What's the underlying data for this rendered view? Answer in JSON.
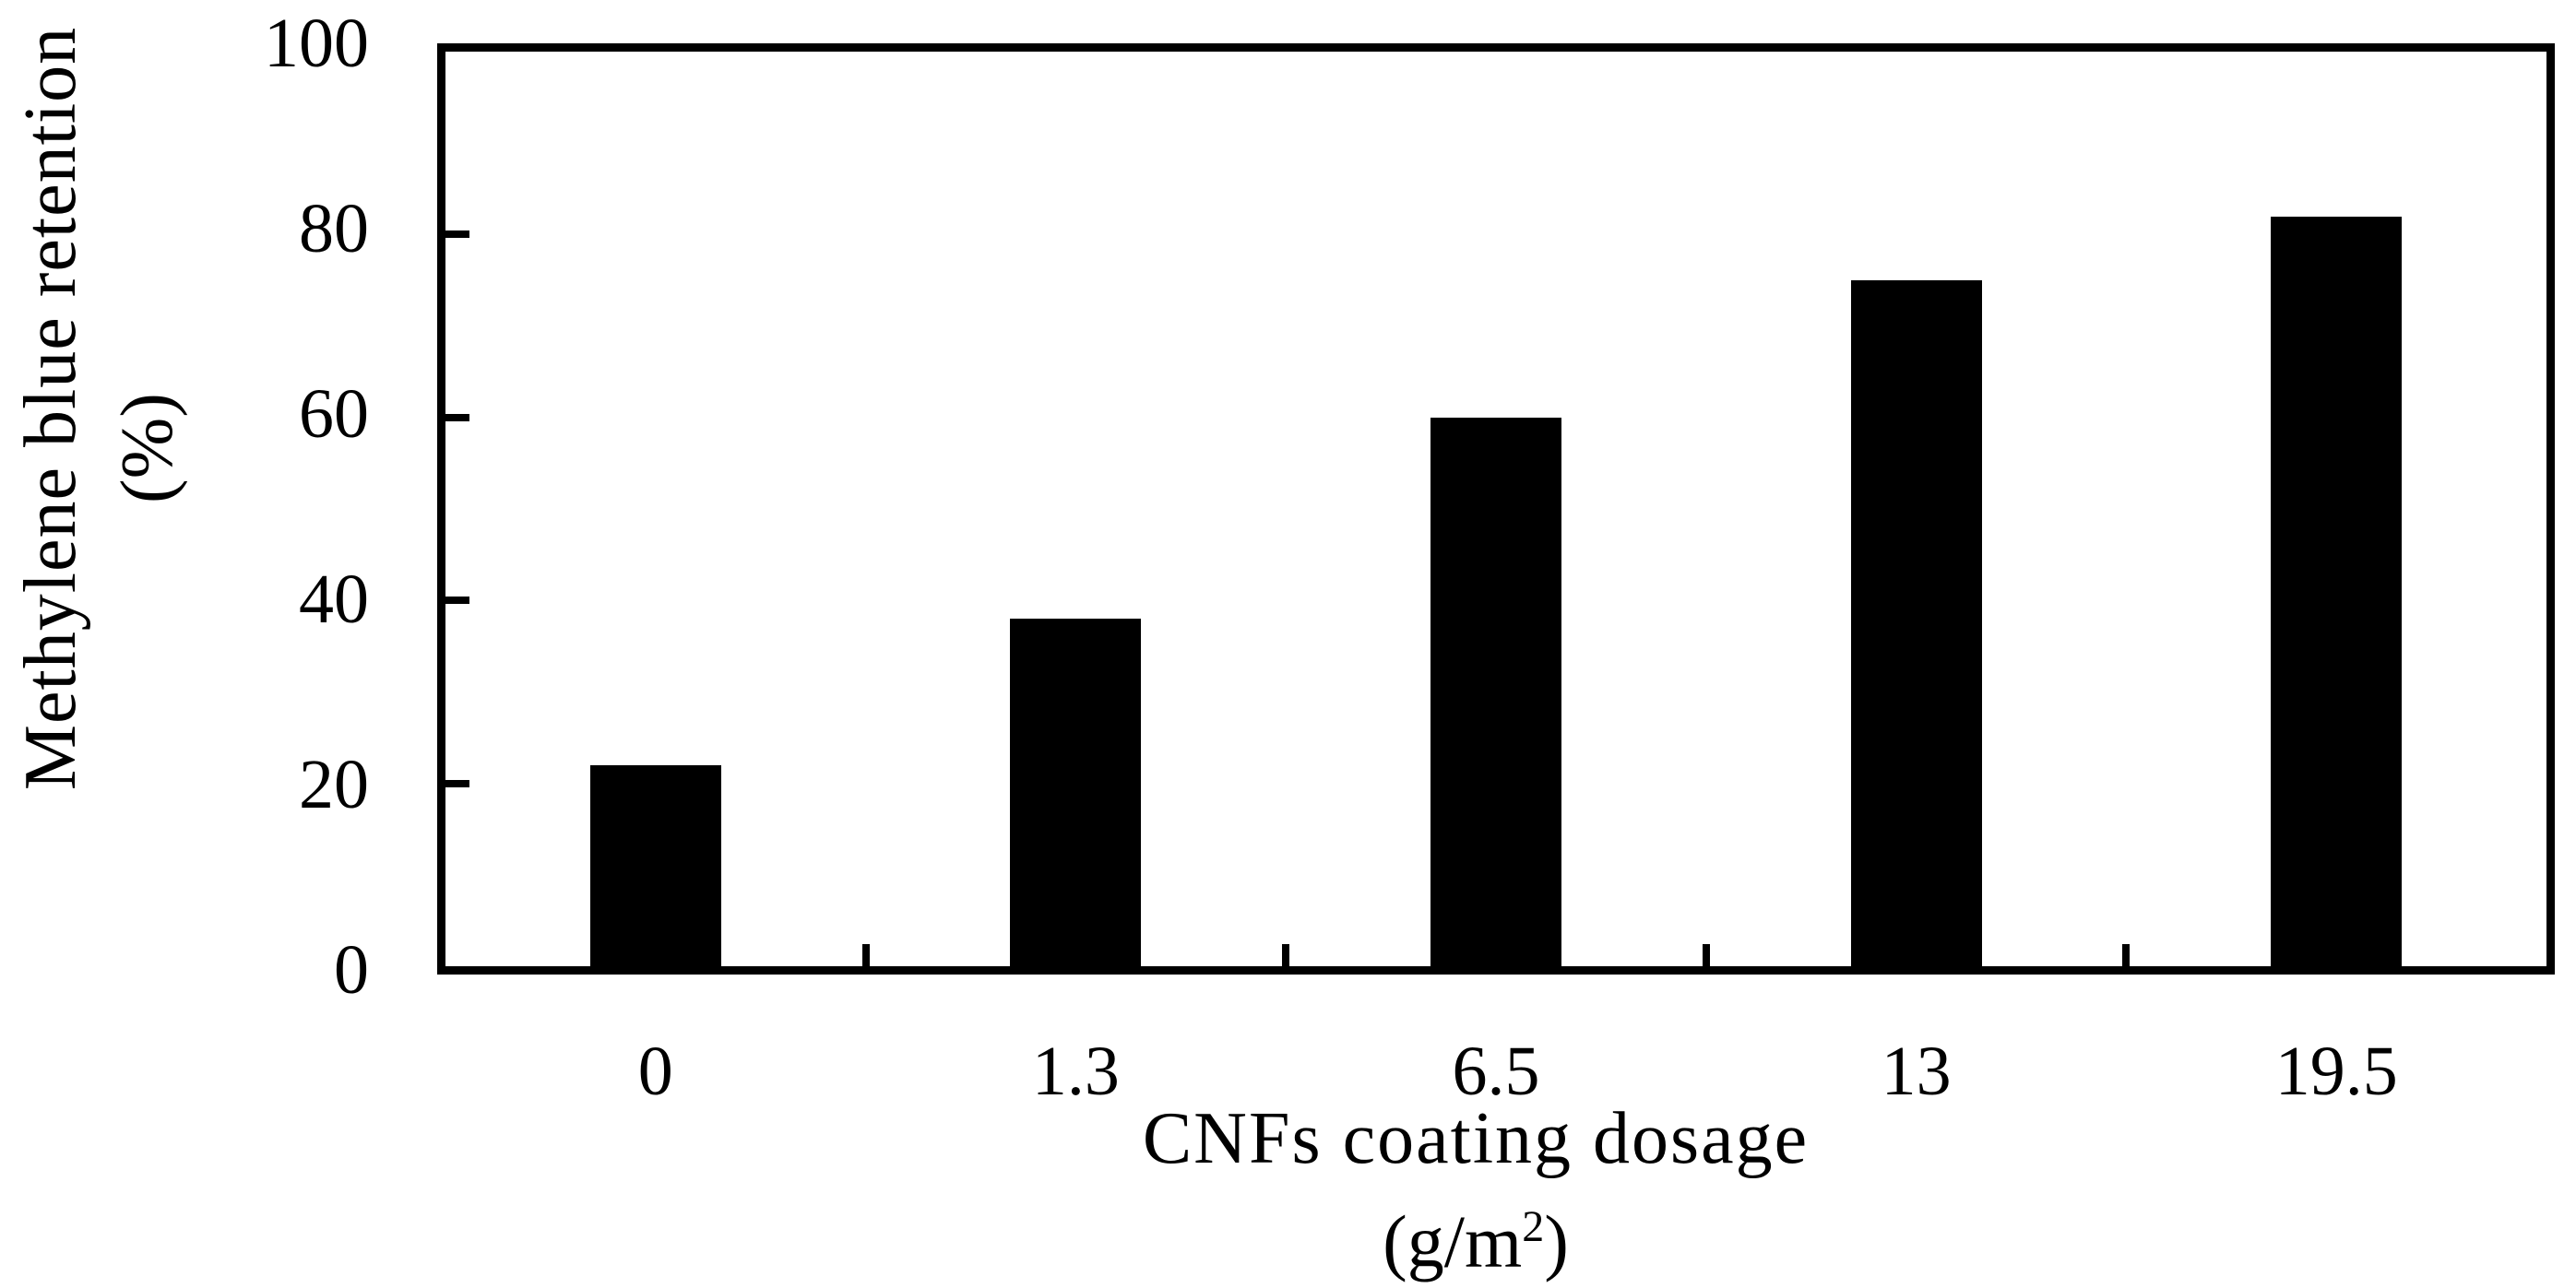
{
  "chart_data": {
    "type": "bar",
    "categories": [
      "0",
      "1.3",
      "6.5",
      "13",
      "19.5"
    ],
    "values": [
      22,
      38,
      60,
      75,
      82
    ],
    "series_color": "#000000",
    "background_color": "#ffffff",
    "title": "",
    "xlabel_line1": "CNFs coating dosage",
    "xlabel_line2": "(g/m²)",
    "ylabel_line1": "Methylene blue retention",
    "ylabel_line2": "(%)",
    "ylim": [
      0,
      100
    ],
    "yticks": [
      0,
      20,
      40,
      60,
      80,
      100
    ],
    "ytick_labels": [
      "0",
      "20",
      "40",
      "60",
      "80",
      "100"
    ],
    "grid": "off",
    "legend": "none",
    "plot_border": "full-box",
    "tick_style": "inside",
    "bar_gap_note": "single black bar per category, centered"
  }
}
